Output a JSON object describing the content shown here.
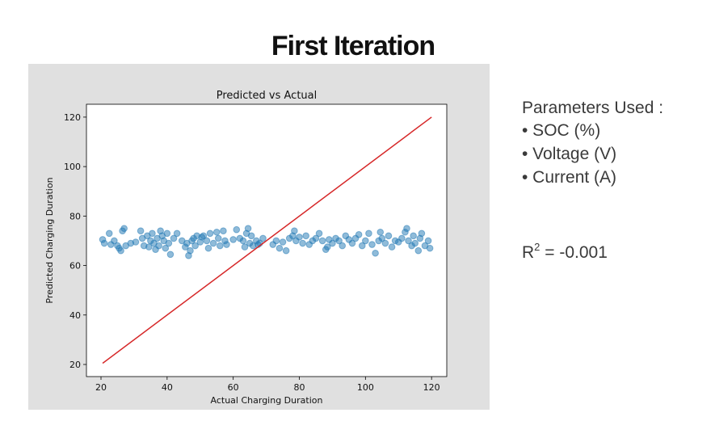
{
  "title": "First Iteration",
  "chart_data": {
    "type": "scatter",
    "title": "Predicted vs Actual",
    "xlabel": "Actual Charging Duration",
    "ylabel": "Predicted Charging Duration",
    "xlim": [
      15.6,
      124.6
    ],
    "ylim": [
      15.1,
      125.2
    ],
    "xticks": [
      20,
      40,
      60,
      80,
      100,
      120
    ],
    "yticks": [
      20,
      40,
      60,
      80,
      100,
      120
    ],
    "grid": false,
    "points": {
      "color": "#1f77b4",
      "x": [
        20.5,
        21,
        22.5,
        23,
        24,
        25,
        25.5,
        26,
        26.5,
        27,
        27.5,
        29,
        30.5,
        32,
        32.5,
        33,
        34,
        34.5,
        35,
        35.5,
        36,
        36.5,
        37,
        37.5,
        38,
        38.5,
        39,
        39.5,
        40,
        40.5,
        41,
        42,
        43,
        44.5,
        45.5,
        46,
        46.5,
        47,
        47.5,
        48,
        48.5,
        49,
        50,
        50.5,
        51,
        52,
        52.5,
        53,
        54,
        55,
        55.5,
        56,
        57,
        57.5,
        58,
        60,
        61,
        62,
        63,
        63.5,
        64,
        64.5,
        65,
        65.5,
        66,
        67,
        67.5,
        68,
        69,
        72,
        73,
        74,
        75,
        76,
        77,
        78,
        78.5,
        79,
        80,
        81,
        82,
        83,
        84,
        85,
        86,
        87,
        88,
        88.5,
        89,
        90,
        91,
        92,
        93,
        94,
        95,
        96,
        97,
        98,
        99,
        100,
        101,
        102,
        103,
        104,
        104.5,
        105,
        106,
        107,
        108,
        109,
        110,
        111,
        112,
        112.5,
        113,
        114,
        114.5,
        115,
        116,
        116.5,
        117,
        118,
        119,
        119.5
      ],
      "y": [
        70.5,
        69,
        73,
        68.5,
        70,
        68,
        67,
        66,
        74,
        75,
        68,
        69,
        69.5,
        74,
        71,
        68,
        72,
        67.5,
        70,
        73,
        69,
        66.5,
        71,
        68,
        74,
        72,
        70,
        67,
        73,
        69,
        64.5,
        71,
        73,
        70,
        67.5,
        69,
        64,
        66,
        70,
        71,
        68,
        72,
        69.5,
        71.5,
        72,
        70,
        67,
        73,
        69,
        73.5,
        71,
        68,
        74,
        70,
        68.5,
        70.5,
        74.5,
        71,
        70,
        67.5,
        73,
        75,
        69,
        72,
        68,
        70,
        68.5,
        69,
        71,
        68.5,
        70,
        67,
        69.5,
        66,
        71,
        72,
        74,
        70,
        71.5,
        69,
        72,
        68.5,
        70,
        71,
        73,
        70,
        66.5,
        67.5,
        70.5,
        69,
        71,
        70,
        68,
        72,
        70.5,
        69,
        71,
        72.5,
        68,
        70,
        73,
        68.5,
        65,
        70,
        73.5,
        71,
        69,
        72,
        67.5,
        70,
        69.5,
        71,
        73.5,
        75,
        70,
        68,
        72,
        69,
        66,
        71,
        73,
        68,
        70,
        67
      ]
    },
    "line": {
      "color": "#d62728",
      "x": [
        20.5,
        120
      ],
      "y": [
        20.5,
        120
      ]
    }
  },
  "parameters": {
    "heading": "Parameters Used :",
    "items": [
      "• SOC (%)",
      "• Voltage (V)",
      "• Current (A)"
    ]
  },
  "r_squared": {
    "symbol": "R",
    "superscript": "2",
    "text": " = -0.001"
  }
}
